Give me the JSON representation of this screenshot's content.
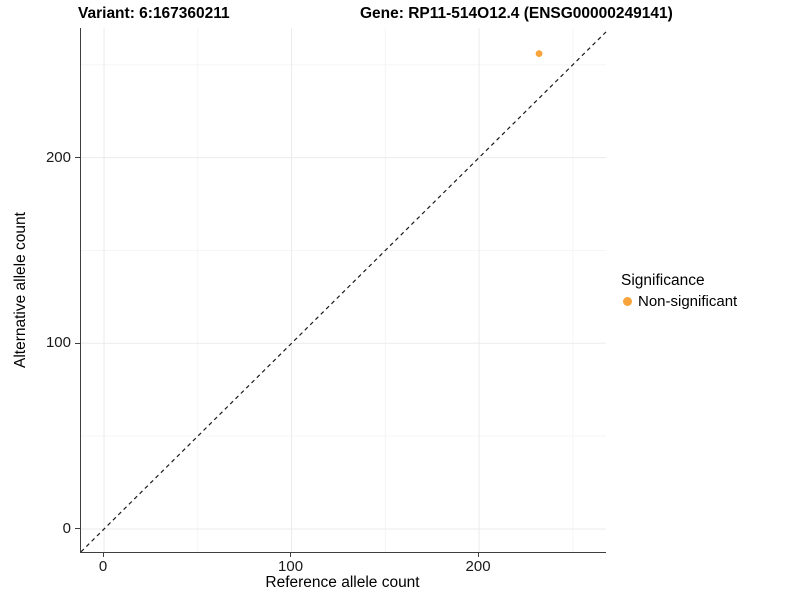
{
  "chart_data": {
    "type": "scatter",
    "title_variant": "Variant: 6:167360211",
    "title_gene": "Gene: RP11-514O12.4 (ENSG00000249141)",
    "xlabel": "Reference allele count",
    "ylabel": "Alternative allele count",
    "xlim": [
      -12.3,
      267.7
    ],
    "ylim": [
      -12.4,
      269.8
    ],
    "x_ticks": [
      0,
      100,
      200
    ],
    "x_tick_labels": [
      "0",
      "100",
      "200"
    ],
    "y_ticks": [
      0,
      100,
      200
    ],
    "y_tick_labels": [
      "0",
      "100",
      "200"
    ],
    "grid": "on",
    "grid_major": [
      0,
      100,
      200
    ],
    "grid_minor": [
      50,
      150,
      250
    ],
    "points": [
      {
        "x": 232,
        "y": 256,
        "series": "Non-significant",
        "color": "#F9A43B",
        "radius": 3.4
      }
    ],
    "identity_line": {
      "style": "dashed",
      "from": [
        -12.3,
        -12.3
      ],
      "to": [
        267.7,
        267.7
      ],
      "color": "#1a1a1a"
    },
    "legend": {
      "position": "right",
      "title": "Significance",
      "entries": [
        {
          "label": "Non-significant",
          "color": "#F9A43B"
        }
      ]
    }
  },
  "colors": {
    "background": "#ffffff",
    "axis_line": "#3f3f3f",
    "tick_text": "#1a1a1a",
    "title_text": "#000000",
    "grid_major": "#ebebeb",
    "grid_minor": "#f5f5f5"
  }
}
